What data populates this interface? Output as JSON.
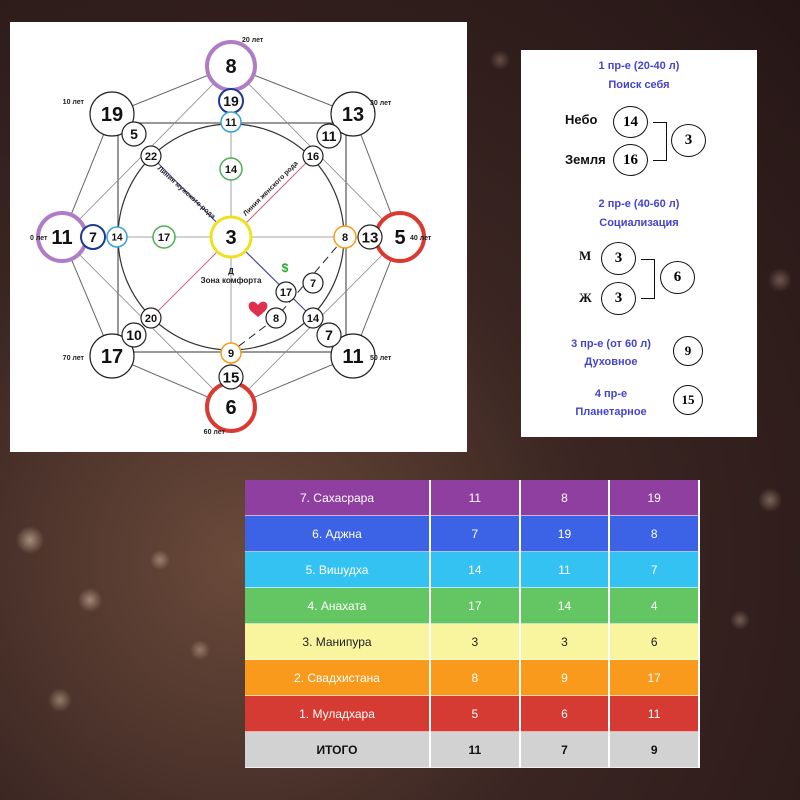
{
  "diagram": {
    "center_label": "Зона комфорта",
    "center_letter": "Д",
    "lines": [
      "Линия мужского рода",
      "Линия женского рода"
    ],
    "age_labels": [
      "0 лет",
      "10 лет",
      "20 лет",
      "30 лет",
      "40 лет",
      "50 лет",
      "60 лет",
      "70 лет"
    ],
    "nodes": [
      {
        "value": "8",
        "color": "#b07cc6"
      },
      {
        "value": "11",
        "color": "#b07cc6"
      },
      {
        "value": "5",
        "color": "#d93a32"
      },
      {
        "value": "6",
        "color": "#d93a32"
      },
      {
        "value": "19",
        "color": "#222"
      },
      {
        "value": "13",
        "color": "#222"
      },
      {
        "value": "17",
        "color": "#222"
      },
      {
        "value": "11",
        "color": "#222"
      },
      {
        "value": "19",
        "color": "#1e3a8a"
      },
      {
        "value": "11",
        "color": "#3aa0d8"
      },
      {
        "value": "14",
        "color": "#4caf50"
      },
      {
        "value": "3",
        "color": "#f0e020"
      },
      {
        "value": "7",
        "color": "#1e3a8a"
      },
      {
        "value": "14",
        "color": "#3aa0d8"
      },
      {
        "value": "17",
        "color": "#4caf50"
      },
      {
        "value": "8",
        "color": "#f39c12"
      },
      {
        "value": "13",
        "color": "#222"
      },
      {
        "value": "9",
        "color": "#f39c12"
      },
      {
        "value": "15",
        "color": "#222"
      },
      {
        "value": "5",
        "color": "#222"
      },
      {
        "value": "22",
        "color": "#222"
      },
      {
        "value": "11",
        "color": "#222"
      },
      {
        "value": "16",
        "color": "#222"
      },
      {
        "value": "20",
        "color": "#222"
      },
      {
        "value": "10",
        "color": "#222"
      },
      {
        "value": "14",
        "color": "#222"
      },
      {
        "value": "7",
        "color": "#222"
      },
      {
        "value": "17",
        "color": "#222"
      },
      {
        "value": "8",
        "color": "#222"
      },
      {
        "value": "7",
        "color": "#222"
      }
    ]
  },
  "side": {
    "p1_title": "1 пр-е (20-40 л)",
    "p1_sub": "Поиск себя",
    "sky_label": "Небо",
    "sky": "14",
    "earth_label": "Земля",
    "earth": "16",
    "p1_result": "3",
    "p2_title": "2 пр-е (40-60 л)",
    "p2_sub": "Социализация",
    "m_label": "М",
    "m": "3",
    "f_label": "Ж",
    "f": "3",
    "p2_result": "6",
    "p3_title": "3 пр-е (от 60 л)",
    "p3_sub": "Духовное",
    "p3_result": "9",
    "p4_title": "4 пр-е",
    "p4_sub": "Планетарное",
    "p4_result": "15"
  },
  "table": {
    "rows": [
      {
        "name": "7. Сахасрара",
        "c1": "11",
        "c2": "8",
        "c3": "19",
        "color": "#8e3fa0"
      },
      {
        "name": "6. Аджна",
        "c1": "7",
        "c2": "19",
        "c3": "8",
        "color": "#3c62e6"
      },
      {
        "name": "5. Вишудха",
        "c1": "14",
        "c2": "11",
        "c3": "7",
        "color": "#33c2f2"
      },
      {
        "name": "4. Анахата",
        "c1": "17",
        "c2": "14",
        "c3": "4",
        "color": "#63c663"
      },
      {
        "name": "3. Манипура",
        "c1": "3",
        "c2": "3",
        "c3": "6",
        "color": "#f8f59e"
      },
      {
        "name": "2. Свадхистана",
        "c1": "8",
        "c2": "9",
        "c3": "17",
        "color": "#f99a1c"
      },
      {
        "name": "1. Муладхара",
        "c1": "5",
        "c2": "6",
        "c3": "11",
        "color": "#d63b33"
      }
    ],
    "total": {
      "name": "ИТОГО",
      "c1": "11",
      "c2": "7",
      "c3": "9",
      "color": "#d2d2d2"
    }
  }
}
